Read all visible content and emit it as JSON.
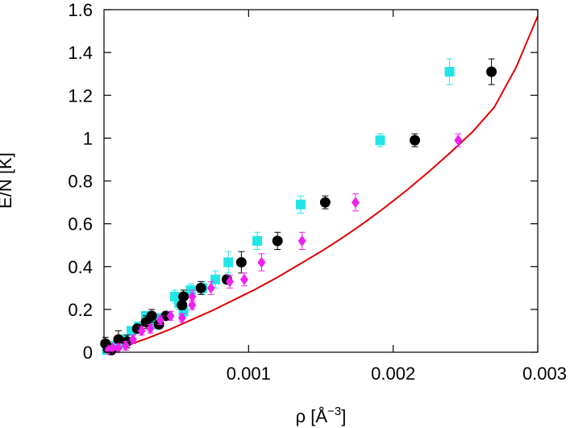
{
  "chart_data": {
    "type": "scatter",
    "xlabel": "ρ [Å",
    "xlabel_sup": "−3",
    "xlabel_suffix": "]",
    "ylabel": "E/N [K]",
    "xlim": [
      0,
      0.003
    ],
    "ylim": [
      0,
      1.6
    ],
    "x_ticks": [
      0.001,
      0.002,
      0.003
    ],
    "x_tick_labels": [
      "0.001",
      "0.002",
      "0.003"
    ],
    "y_ticks": [
      0,
      0.2,
      0.4,
      0.6,
      0.8,
      1,
      1.2,
      1.4,
      1.6
    ],
    "y_tick_labels": [
      "0",
      "0.2",
      "0.4",
      "0.6",
      "0.8",
      "1",
      "1.2",
      "1.4",
      "1.6"
    ],
    "grid": false,
    "curve": {
      "color": "#e00000",
      "x": [
        0,
        0.00015,
        0.0003,
        0.00045,
        0.0006,
        0.00075,
        0.0009,
        0.00105,
        0.0012,
        0.00135,
        0.0015,
        0.00165,
        0.0018,
        0.00195,
        0.0021,
        0.00225,
        0.0024,
        0.00255,
        0.0027,
        0.00285,
        0.003
      ],
      "y": [
        0.0,
        0.03,
        0.065,
        0.105,
        0.15,
        0.195,
        0.245,
        0.295,
        0.35,
        0.41,
        0.47,
        0.535,
        0.605,
        0.68,
        0.76,
        0.845,
        0.935,
        1.03,
        1.145,
        1.33,
        1.57
      ]
    },
    "series": [
      {
        "marker": "square",
        "color": "#22e5e5",
        "x": [
          2e-05,
          4e-05,
          7e-05,
          0.0001,
          0.00014,
          0.00019,
          0.00024,
          0.00029,
          0.00033,
          0.00038,
          0.00044,
          0.00049,
          0.00052,
          0.00055,
          0.0006,
          0.00068,
          0.00077,
          0.00086,
          0.00106,
          0.00136,
          0.00191,
          0.00239
        ],
        "y": [
          0.01,
          0.02,
          0.03,
          0.04,
          0.06,
          0.1,
          0.12,
          0.17,
          0.13,
          0.16,
          0.17,
          0.26,
          0.23,
          0.19,
          0.29,
          0.3,
          0.34,
          0.42,
          0.52,
          0.69,
          0.99,
          1.31
        ],
        "err": [
          0.015,
          0.02,
          0.02,
          0.02,
          0.02,
          0.02,
          0.02,
          0.02,
          0.02,
          0.02,
          0.02,
          0.03,
          0.03,
          0.02,
          0.03,
          0.03,
          0.04,
          0.05,
          0.04,
          0.04,
          0.03,
          0.06
        ]
      },
      {
        "marker": "circle",
        "color": "#000000",
        "x": [
          1e-05,
          3e-05,
          5e-05,
          0.0001,
          0.00016,
          0.00023,
          0.00029,
          0.00033,
          0.00038,
          0.00043,
          0.00054,
          0.00055,
          0.00067,
          0.00085,
          0.00095,
          0.0012,
          0.00153,
          0.00215,
          0.00268
        ],
        "y": [
          0.04,
          0.02,
          0.01,
          0.06,
          0.05,
          0.11,
          0.14,
          0.17,
          0.13,
          0.17,
          0.22,
          0.26,
          0.3,
          0.34,
          0.42,
          0.52,
          0.7,
          0.99,
          1.31
        ],
        "err": [
          0.03,
          0.02,
          0.02,
          0.04,
          0.03,
          0.02,
          0.03,
          0.03,
          0.02,
          0.02,
          0.02,
          0.03,
          0.03,
          0.02,
          0.05,
          0.04,
          0.03,
          0.03,
          0.06
        ]
      },
      {
        "marker": "diamond",
        "color": "#ee22ee",
        "x": [
          3e-05,
          6e-05,
          0.0001,
          0.00015,
          0.0002,
          0.00026,
          0.00032,
          0.00039,
          0.00046,
          0.00054,
          0.00061,
          0.00061,
          0.00074,
          0.00087,
          0.00097,
          0.00109,
          0.00137,
          0.00174,
          0.00245
        ],
        "y": [
          0.01,
          0.02,
          0.02,
          0.03,
          0.06,
          0.1,
          0.11,
          0.15,
          0.17,
          0.16,
          0.22,
          0.26,
          0.3,
          0.33,
          0.34,
          0.42,
          0.52,
          0.7,
          0.99
        ],
        "err": [
          0.01,
          0.01,
          0.02,
          0.02,
          0.02,
          0.02,
          0.02,
          0.02,
          0.02,
          0.02,
          0.02,
          0.03,
          0.03,
          0.03,
          0.03,
          0.04,
          0.04,
          0.04,
          0.03
        ]
      }
    ]
  }
}
